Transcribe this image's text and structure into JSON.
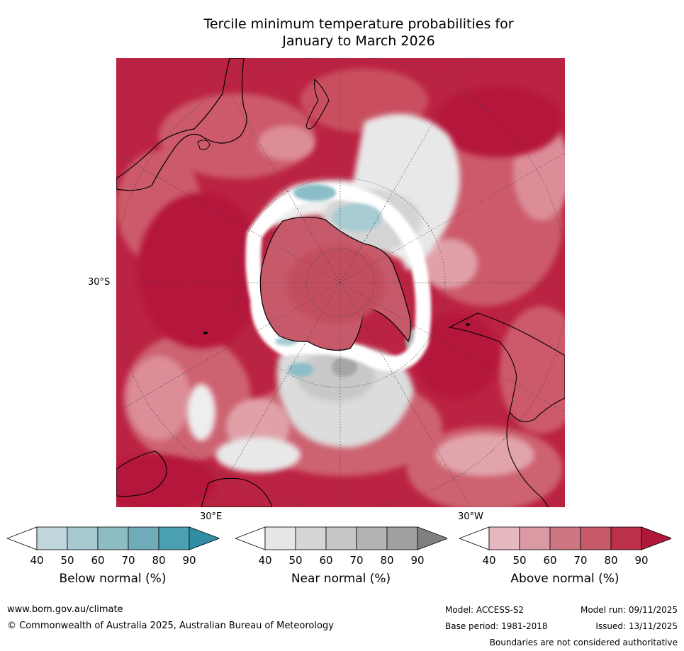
{
  "title_line1": "Tercile minimum temperature probabilities for",
  "title_line2": "January to March 2026",
  "map": {
    "lat_label": "30°S",
    "lon_labels": {
      "east": "30°E",
      "west": "30°W"
    },
    "colors": {
      "above_deep": "#b81d3d",
      "above_mid": "#c8505f",
      "above_light": "#d77e8b",
      "near_light": "#e6e6e6",
      "near_mid": "#c8c8c8",
      "near_dark": "#a6a6a6",
      "below_light": "#b4d3da",
      "below_mid": "#8cbec8",
      "land_line": "#000000"
    }
  },
  "colorbars": [
    {
      "title": "Below normal (%)",
      "ticks": [
        "40",
        "50",
        "60",
        "70",
        "80",
        "90"
      ],
      "colors": [
        "#ffffff",
        "#bfd6dc",
        "#a8c9d0",
        "#8ebcc3",
        "#6eacb8",
        "#4aa0b0",
        "#2f8ea3"
      ]
    },
    {
      "title": "Near normal (%)",
      "ticks": [
        "40",
        "50",
        "60",
        "70",
        "80",
        "90"
      ],
      "colors": [
        "#ffffff",
        "#e6e6e6",
        "#d6d6d6",
        "#c6c6c6",
        "#b4b4b4",
        "#a0a0a0",
        "#808080"
      ]
    },
    {
      "title": "Above normal (%)",
      "ticks": [
        "40",
        "50",
        "60",
        "70",
        "80",
        "90"
      ],
      "colors": [
        "#ffffff",
        "#e6b8bf",
        "#d99aa4",
        "#cd7782",
        "#c65a69",
        "#bc3049",
        "#b0183a"
      ]
    }
  ],
  "footer": {
    "website": "www.bom.gov.au/climate",
    "copyright": "© Commonwealth of Australia 2025, Australian Bureau of Meteorology",
    "model": "Model: ACCESS-S2",
    "base_period": "Base period: 1981-2018",
    "model_run": "Model run: 09/11/2025",
    "issued": "Issued: 13/11/2025",
    "disclaimer": "Boundaries are not considered authoritative"
  }
}
